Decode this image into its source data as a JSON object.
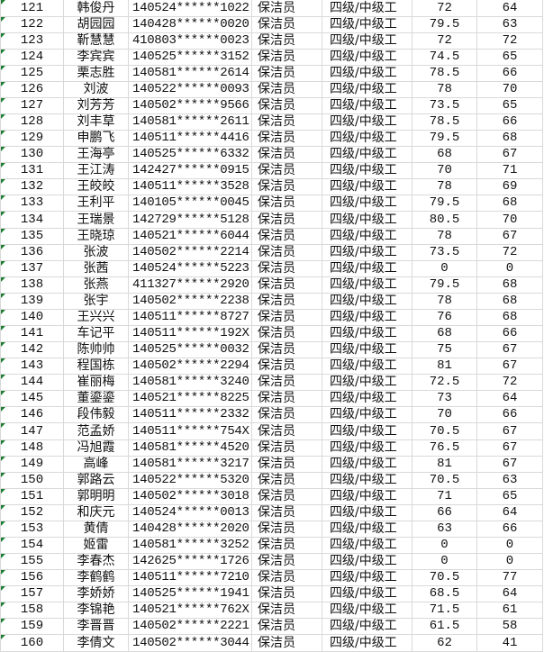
{
  "sheet": {
    "marker_color": "#1e7d32",
    "rows": [
      [
        "121",
        "韩俊丹",
        "140524******1022",
        "保洁员",
        "四级/中级工",
        "72",
        "64"
      ],
      [
        "122",
        "胡园园",
        "140428******0020",
        "保洁员",
        "四级/中级工",
        "79.5",
        "63"
      ],
      [
        "123",
        "靳慧慧",
        "410803******0023",
        "保洁员",
        "四级/中级工",
        "72",
        "72"
      ],
      [
        "124",
        "李宾宾",
        "140525******3152",
        "保洁员",
        "四级/中级工",
        "74.5",
        "65"
      ],
      [
        "125",
        "栗志胜",
        "140581******2614",
        "保洁员",
        "四级/中级工",
        "78.5",
        "66"
      ],
      [
        "126",
        "刘波",
        "140522******0093",
        "保洁员",
        "四级/中级工",
        "78",
        "70"
      ],
      [
        "127",
        "刘芳芳",
        "140502******9566",
        "保洁员",
        "四级/中级工",
        "73.5",
        "65"
      ],
      [
        "128",
        "刘丰草",
        "140581******2611",
        "保洁员",
        "四级/中级工",
        "78.5",
        "66"
      ],
      [
        "129",
        "申鹏飞",
        "140511******4416",
        "保洁员",
        "四级/中级工",
        "79.5",
        "68"
      ],
      [
        "130",
        "王海亭",
        "140525******6332",
        "保洁员",
        "四级/中级工",
        "68",
        "67"
      ],
      [
        "131",
        "王江涛",
        "142427******0915",
        "保洁员",
        "四级/中级工",
        "70",
        "71"
      ],
      [
        "132",
        "王皎皎",
        "140511******3528",
        "保洁员",
        "四级/中级工",
        "78",
        "69"
      ],
      [
        "133",
        "王利平",
        "140105******0045",
        "保洁员",
        "四级/中级工",
        "79.5",
        "68"
      ],
      [
        "134",
        "王瑞景",
        "142729******5128",
        "保洁员",
        "四级/中级工",
        "80.5",
        "70"
      ],
      [
        "135",
        "王晓琼",
        "140521******6044",
        "保洁员",
        "四级/中级工",
        "78",
        "67"
      ],
      [
        "136",
        "张波",
        "140502******2214",
        "保洁员",
        "四级/中级工",
        "73.5",
        "72"
      ],
      [
        "137",
        "张茜",
        "140524******5223",
        "保洁员",
        "四级/中级工",
        "0",
        "0"
      ],
      [
        "138",
        "张燕",
        "411327******2920",
        "保洁员",
        "四级/中级工",
        "79.5",
        "68"
      ],
      [
        "139",
        "张宇",
        "140502******2238",
        "保洁员",
        "四级/中级工",
        "78",
        "68"
      ],
      [
        "140",
        "王兴兴",
        "140511******8727",
        "保洁员",
        "四级/中级工",
        "76",
        "68"
      ],
      [
        "141",
        "车记平",
        "140511******192X",
        "保洁员",
        "四级/中级工",
        "68",
        "66"
      ],
      [
        "142",
        "陈帅帅",
        "140525******0032",
        "保洁员",
        "四级/中级工",
        "75",
        "67"
      ],
      [
        "143",
        "程国栋",
        "140502******2294",
        "保洁员",
        "四级/中级工",
        "81",
        "67"
      ],
      [
        "144",
        "崔丽梅",
        "140581******3240",
        "保洁员",
        "四级/中级工",
        "72.5",
        "72"
      ],
      [
        "145",
        "董鎏鎏",
        "140521******8225",
        "保洁员",
        "四级/中级工",
        "73",
        "64"
      ],
      [
        "146",
        "段伟毅",
        "140511******2332",
        "保洁员",
        "四级/中级工",
        "70",
        "66"
      ],
      [
        "147",
        "范孟娇",
        "140511******754X",
        "保洁员",
        "四级/中级工",
        "70.5",
        "67"
      ],
      [
        "148",
        "冯旭霞",
        "140581******4520",
        "保洁员",
        "四级/中级工",
        "76.5",
        "67"
      ],
      [
        "149",
        "高峰",
        "140581******3217",
        "保洁员",
        "四级/中级工",
        "81",
        "67"
      ],
      [
        "150",
        "郭路云",
        "140522******5320",
        "保洁员",
        "四级/中级工",
        "70.5",
        "63"
      ],
      [
        "151",
        "郭明明",
        "140502******3018",
        "保洁员",
        "四级/中级工",
        "71",
        "65"
      ],
      [
        "152",
        "和庆元",
        "140524******0013",
        "保洁员",
        "四级/中级工",
        "66",
        "64"
      ],
      [
        "153",
        "黄倩",
        "140428******2020",
        "保洁员",
        "四级/中级工",
        "63",
        "66"
      ],
      [
        "154",
        "姬雷",
        "140581******3252",
        "保洁员",
        "四级/中级工",
        "0",
        "0"
      ],
      [
        "155",
        "李春杰",
        "142625******1726",
        "保洁员",
        "四级/中级工",
        "0",
        "0"
      ],
      [
        "156",
        "李鹤鹤",
        "140511******7210",
        "保洁员",
        "四级/中级工",
        "70.5",
        "77"
      ],
      [
        "157",
        "李娇娇",
        "140525******1941",
        "保洁员",
        "四级/中级工",
        "68.5",
        "64"
      ],
      [
        "158",
        "李锦艳",
        "140521******762X",
        "保洁员",
        "四级/中级工",
        "71.5",
        "61"
      ],
      [
        "159",
        "李晋晋",
        "140502******2221",
        "保洁员",
        "四级/中级工",
        "61.5",
        "58"
      ],
      [
        "160",
        "李倩文",
        "140502******3044",
        "保洁员",
        "四级/中级工",
        "62",
        "41"
      ]
    ]
  }
}
